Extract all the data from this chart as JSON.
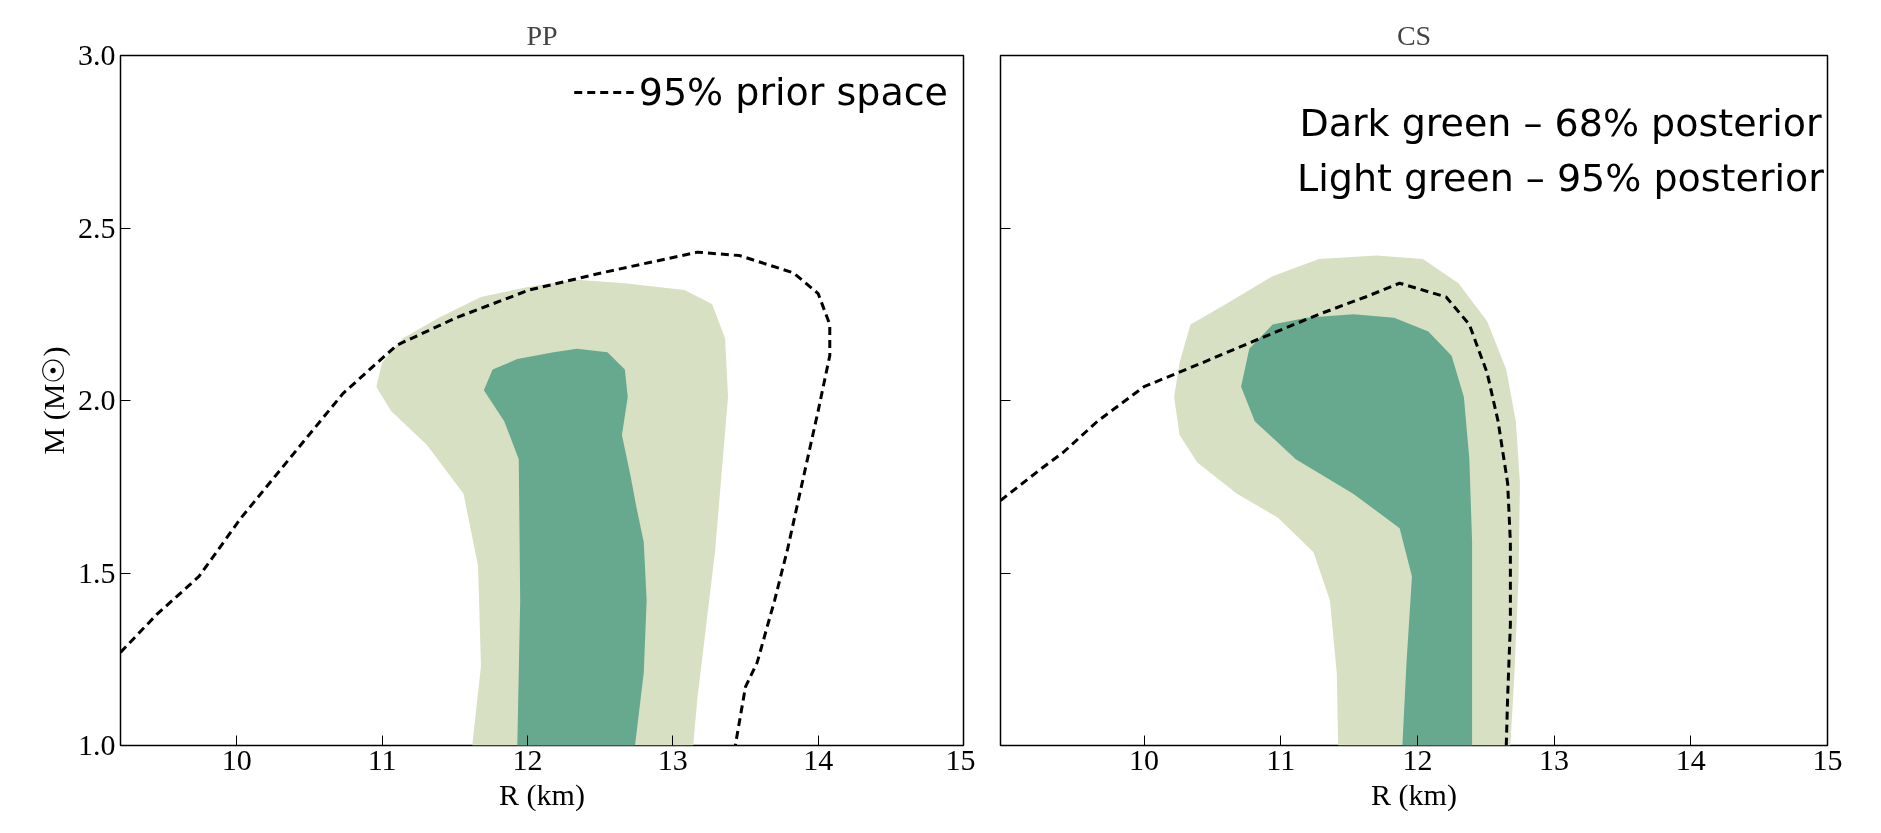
{
  "chart_data": [
    {
      "type": "line",
      "title": "PP",
      "xlabel": "R (km)",
      "ylabel": "M (M☉)",
      "xlim": [
        9.2,
        15
      ],
      "ylim": [
        1,
        3
      ],
      "xticks": [
        10,
        11,
        12,
        13,
        14,
        15
      ],
      "yticks": [
        {
          "value": 1,
          "label": "1.0"
        },
        {
          "value": 1.5,
          "label": "1.5"
        },
        {
          "value": 2,
          "label": "2.0"
        },
        {
          "value": 2.5,
          "label": "2.5"
        },
        {
          "value": 3,
          "label": "3.0"
        }
      ],
      "legend": "top right",
      "series": [
        {
          "type": "area",
          "color": "#d7e0c3",
          "x": [
            11.62,
            11.68,
            11.66,
            11.56,
            11.31,
            11.06,
            10.96,
            11.0,
            11.14,
            11.39,
            11.68,
            12.01,
            12.34,
            12.67,
            13.08,
            13.27,
            13.36,
            13.38,
            13.33,
            13.29,
            13.23,
            13.17,
            13.14
          ],
          "values": [
            1.0,
            1.23,
            1.52,
            1.73,
            1.87,
            1.97,
            2.04,
            2.11,
            2.18,
            2.24,
            2.3,
            2.33,
            2.35,
            2.34,
            2.32,
            2.28,
            2.18,
            2.01,
            1.76,
            1.56,
            1.35,
            1.14,
            1.0
          ]
        },
        {
          "type": "area",
          "color": "#66a98e",
          "x": [
            11.93,
            11.95,
            11.94,
            11.84,
            11.7,
            11.76,
            11.93,
            12.18,
            12.34,
            12.55,
            12.67,
            12.69,
            12.65,
            12.71,
            12.75,
            12.8,
            12.82,
            12.8,
            12.74
          ],
          "values": [
            1.0,
            1.42,
            1.83,
            1.94,
            2.03,
            2.09,
            2.12,
            2.14,
            2.15,
            2.14,
            2.09,
            2.01,
            1.9,
            1.78,
            1.69,
            1.59,
            1.42,
            1.21,
            1.0
          ]
        },
        {
          "name": "95% prior space",
          "color": "#000000",
          "line_style": "dashed",
          "x": [
            9.2,
            9.45,
            9.74,
            10.03,
            10.36,
            10.73,
            11.1,
            11.51,
            12.01,
            12.51,
            12.84,
            13.17,
            13.46,
            13.83,
            14.0,
            14.08,
            14.08,
            14.0,
            13.9,
            13.79,
            13.7,
            13.58,
            13.5,
            13.43
          ],
          "values": [
            1.27,
            1.38,
            1.49,
            1.66,
            1.83,
            2.02,
            2.16,
            2.24,
            2.32,
            2.37,
            2.4,
            2.43,
            2.42,
            2.37,
            2.31,
            2.22,
            2.13,
            1.97,
            1.78,
            1.57,
            1.42,
            1.24,
            1.17,
            1.0
          ]
        }
      ]
    },
    {
      "type": "line",
      "title": "CS",
      "xlabel": "R (km)",
      "xlim": [
        8.95,
        15
      ],
      "ylim": [
        1,
        3
      ],
      "xticks": [
        10,
        11,
        12,
        13,
        14,
        15
      ],
      "yticks": [
        1,
        1.5,
        2,
        2.5,
        3
      ],
      "tick_labels": "x",
      "annotations": [
        "Dark green – 68% posterior",
        "Light green – 95% posterior"
      ],
      "series": [
        {
          "type": "area",
          "color": "#d7e0c3",
          "x": [
            11.42,
            11.41,
            11.36,
            11.24,
            10.98,
            10.68,
            10.39,
            10.26,
            10.22,
            10.26,
            10.34,
            10.6,
            10.94,
            11.28,
            11.7,
            12.04,
            12.3,
            12.51,
            12.65,
            12.72,
            12.75,
            12.74,
            12.71,
            12.68
          ],
          "values": [
            1.0,
            1.21,
            1.42,
            1.56,
            1.66,
            1.73,
            1.82,
            1.9,
            2.01,
            2.11,
            2.22,
            2.28,
            2.36,
            2.41,
            2.42,
            2.41,
            2.34,
            2.23,
            2.09,
            1.94,
            1.76,
            1.49,
            1.21,
            1.0
          ]
        },
        {
          "type": "area",
          "color": "#66a98e",
          "x": [
            11.89,
            11.92,
            11.96,
            11.87,
            11.53,
            11.11,
            10.81,
            10.71,
            10.77,
            10.94,
            11.19,
            11.53,
            11.83,
            12.08,
            12.25,
            12.34,
            12.38,
            12.4,
            12.4,
            12.4
          ],
          "values": [
            1.0,
            1.24,
            1.49,
            1.63,
            1.73,
            1.83,
            1.94,
            2.04,
            2.15,
            2.22,
            2.24,
            2.25,
            2.24,
            2.2,
            2.13,
            2.01,
            1.83,
            1.59,
            1.24,
            1.0
          ]
        },
        {
          "color": "#000000",
          "line_style": "dashed",
          "x": [
            8.95,
            9.24,
            9.41,
            9.66,
            10.0,
            10.43,
            10.85,
            11.28,
            11.62,
            11.87,
            12.21,
            12.38,
            12.51,
            12.59,
            12.66,
            12.68,
            12.68,
            12.66,
            12.65
          ],
          "values": [
            1.71,
            1.8,
            1.85,
            1.94,
            2.04,
            2.11,
            2.18,
            2.25,
            2.3,
            2.34,
            2.3,
            2.22,
            2.08,
            1.94,
            1.76,
            1.59,
            1.35,
            1.14,
            1.0
          ]
        }
      ]
    }
  ]
}
